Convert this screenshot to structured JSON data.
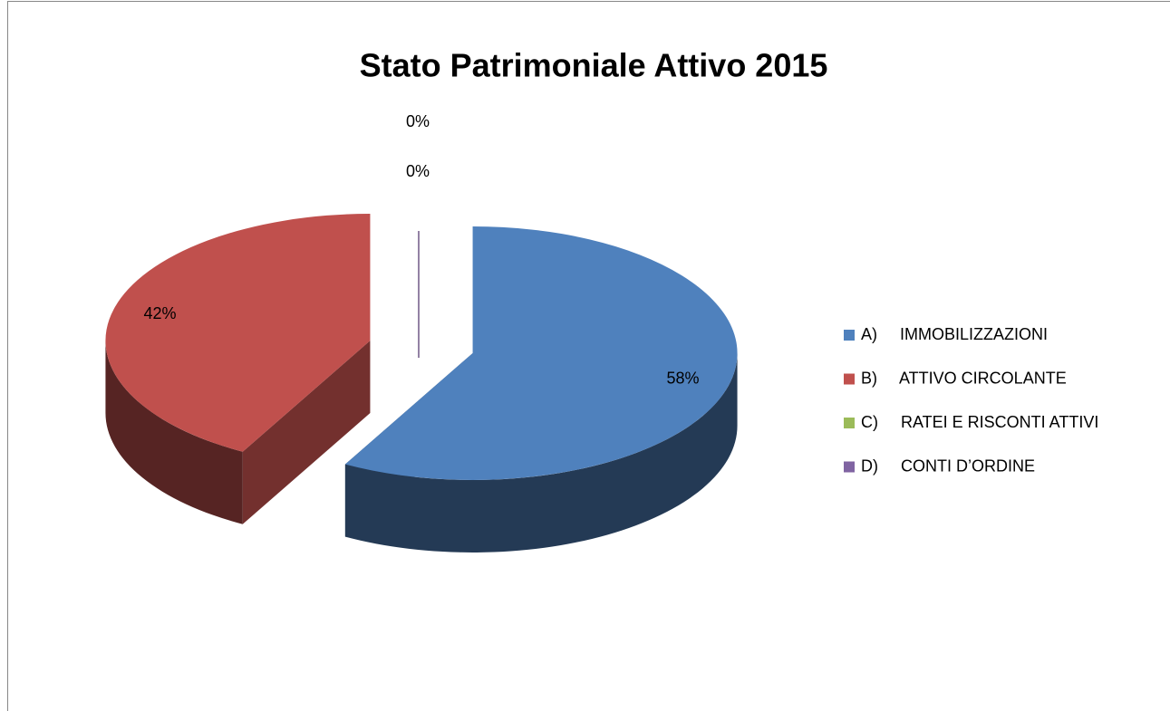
{
  "chart_data": {
    "type": "pie",
    "title": "Stato Patrimoniale Attivo 2015",
    "categories": [
      "A)     IMMOBILIZZAZIONI",
      "B)     ATTIVO CIRCOLANTE",
      "C)     RATEI E RISCONTI ATTIVI",
      "D)     CONTI D’ORDINE"
    ],
    "values": [
      58,
      42,
      0,
      0
    ],
    "value_labels": [
      "58%",
      "42%",
      "0%",
      "0%"
    ],
    "colors": [
      "#4f81bd",
      "#c0504d",
      "#9bbb59",
      "#8064a2"
    ],
    "legend": "right"
  }
}
